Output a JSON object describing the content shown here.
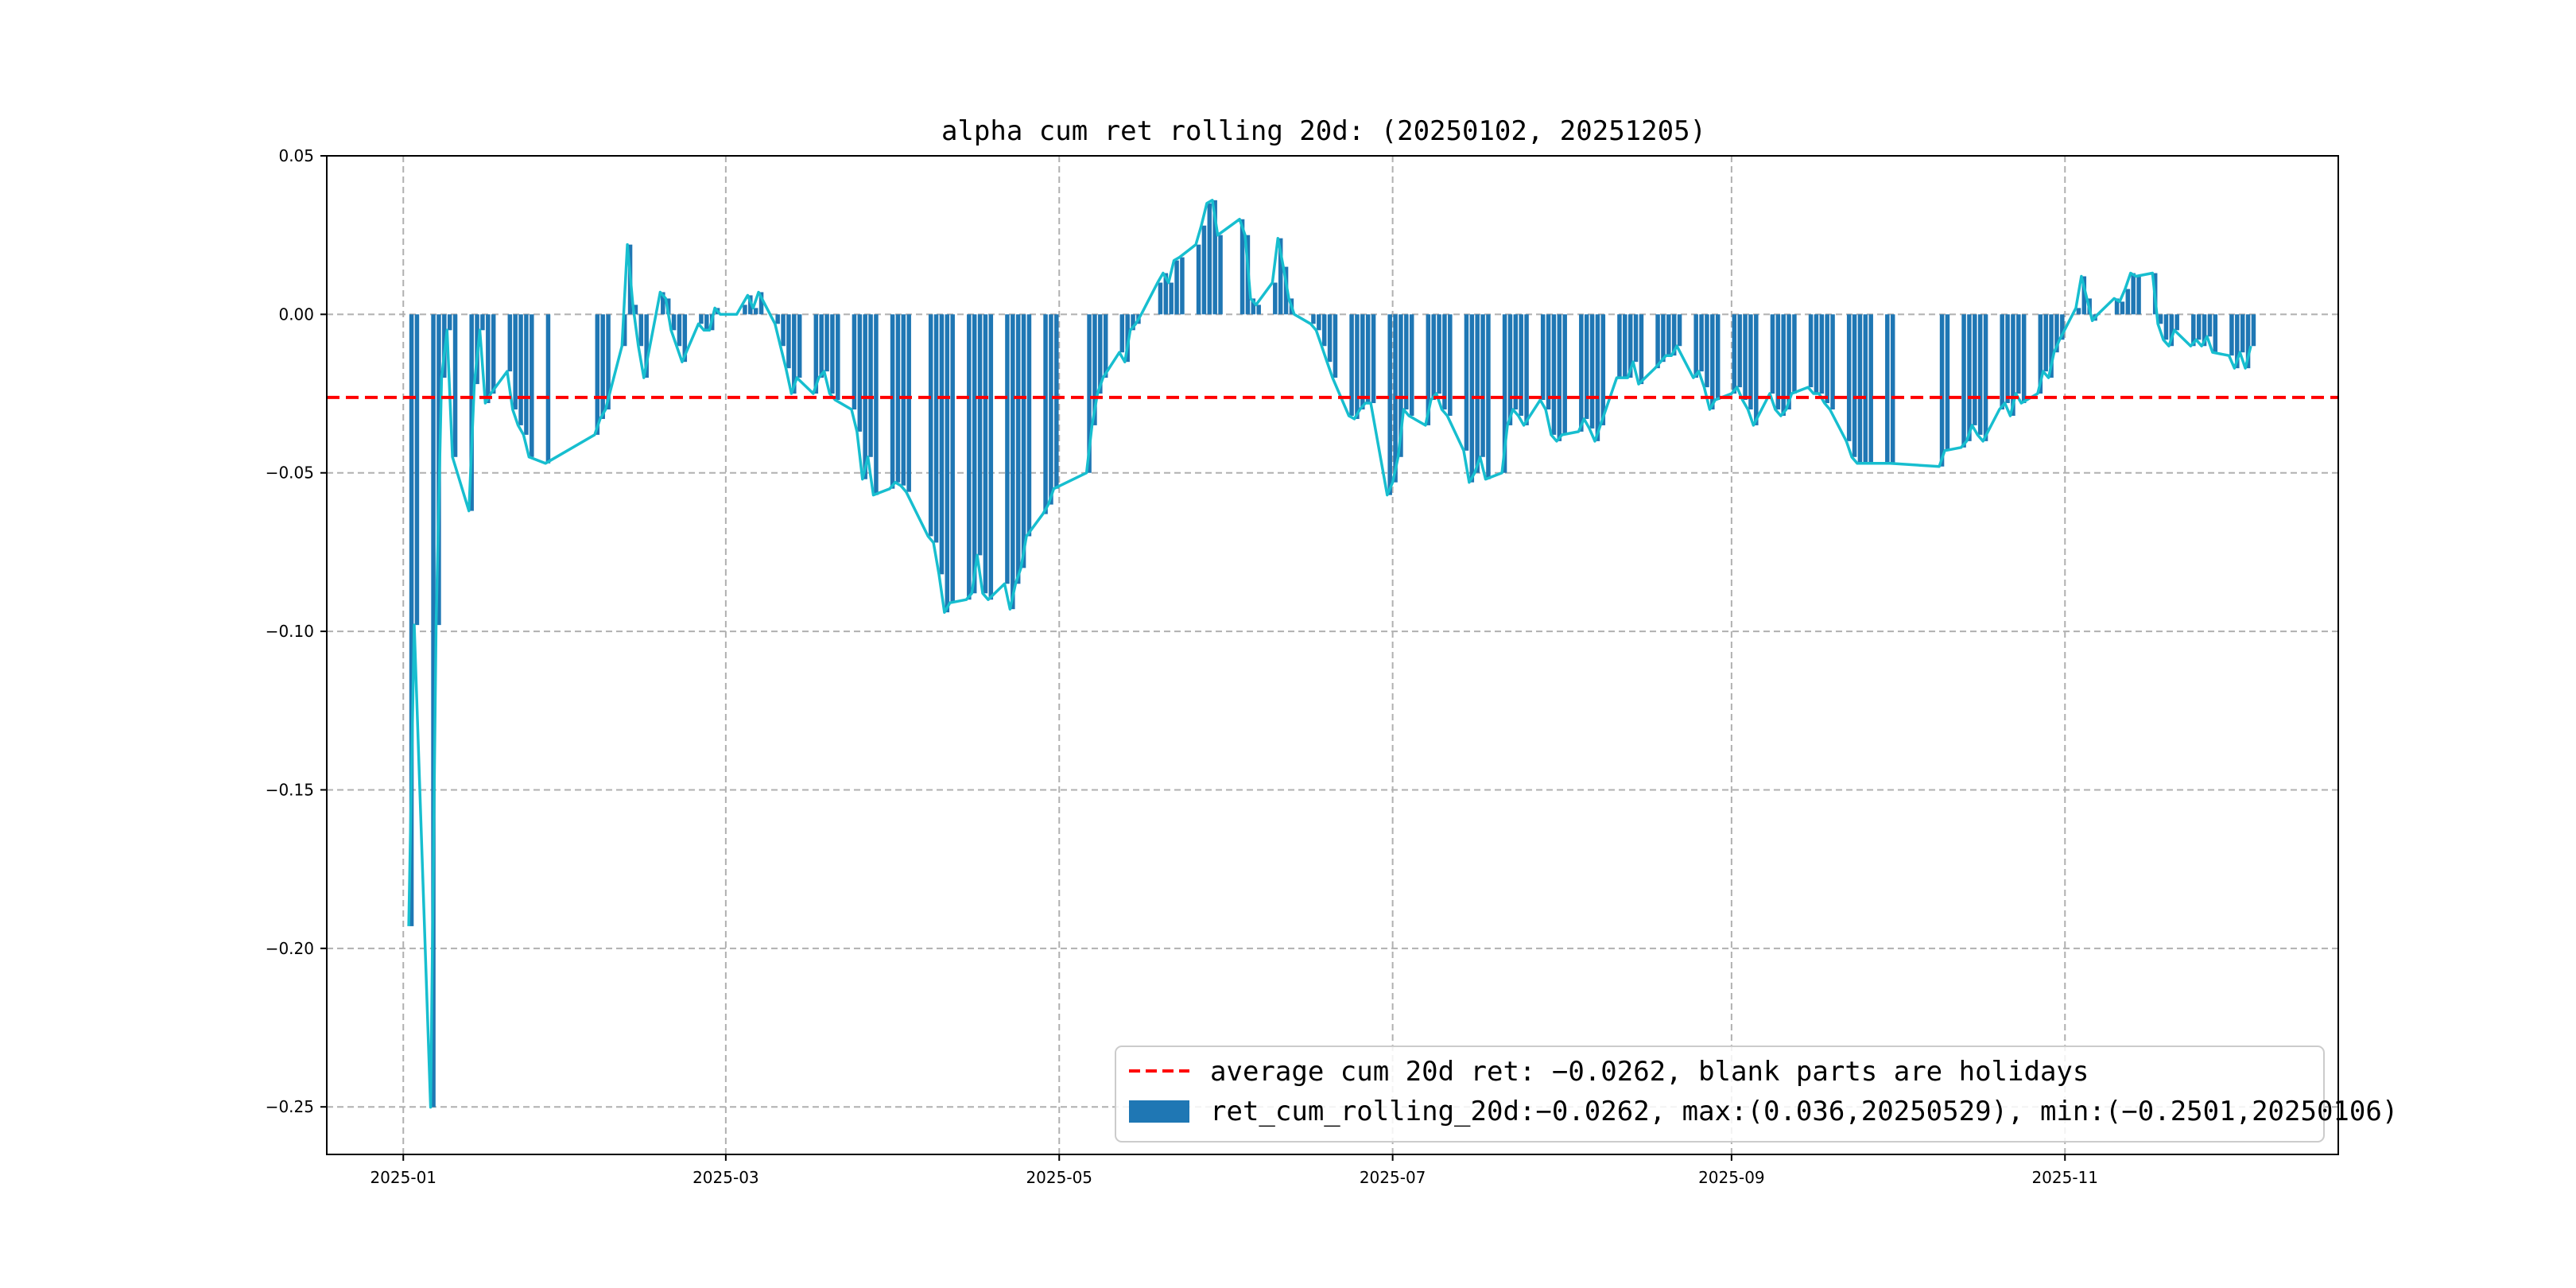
{
  "chart_data": {
    "type": "bar",
    "title": "alpha cum ret rolling 20d: (20250102, 20251205)",
    "xlabel": "",
    "ylabel": "",
    "ylim": [
      -0.265,
      0.05
    ],
    "xlim_dates": [
      "2024-12-18",
      "2025-12-21"
    ],
    "grid": true,
    "yticks": [
      0.05,
      0.0,
      -0.05,
      -0.1,
      -0.15,
      -0.2,
      -0.25
    ],
    "ytick_labels": [
      "0.05",
      "0.00",
      "−0.05",
      "−0.10",
      "−0.15",
      "−0.20",
      "−0.25"
    ],
    "xticks": [
      "2025-01-01",
      "2025-03-01",
      "2025-05-01",
      "2025-07-01",
      "2025-09-01",
      "2025-11-01"
    ],
    "xtick_labels": [
      "2025-01",
      "2025-03",
      "2025-05",
      "2025-07",
      "2025-09",
      "2025-11"
    ],
    "average_line": {
      "value": -0.0262,
      "color": "#ff0000",
      "style": "dashed"
    },
    "bar_color": "#1f77b4",
    "line_color": "#17becf",
    "legend_position": "lower-right",
    "legend": [
      {
        "label": "average cum 20d ret: −0.0262, blank parts are holidays",
        "kind": "dashed-line",
        "color": "#ff0000"
      },
      {
        "label": "ret_cum_rolling_20d:−0.0262, max:(0.036,20250529), min:(−0.2501,20250106)",
        "kind": "patch",
        "color": "#1f77b4"
      }
    ],
    "series": [
      {
        "name": "ret_cum_rolling_20d",
        "points": [
          [
            "2025-01-02",
            -0.193
          ],
          [
            "2025-01-03",
            -0.098
          ],
          [
            "2025-01-06",
            -0.2501
          ],
          [
            "2025-01-07",
            -0.098
          ],
          [
            "2025-01-08",
            -0.02
          ],
          [
            "2025-01-09",
            -0.005
          ],
          [
            "2025-01-10",
            -0.045
          ],
          [
            "2025-01-13",
            -0.062
          ],
          [
            "2025-01-14",
            -0.022
          ],
          [
            "2025-01-15",
            -0.005
          ],
          [
            "2025-01-16",
            -0.028
          ],
          [
            "2025-01-17",
            -0.025
          ],
          [
            "2025-01-20",
            -0.018
          ],
          [
            "2025-01-21",
            -0.03
          ],
          [
            "2025-01-22",
            -0.035
          ],
          [
            "2025-01-23",
            -0.038
          ],
          [
            "2025-01-24",
            -0.045
          ],
          [
            "2025-01-27",
            -0.047
          ],
          [
            "2025-02-05",
            -0.038
          ],
          [
            "2025-02-06",
            -0.033
          ],
          [
            "2025-02-07",
            -0.03
          ],
          [
            "2025-02-10",
            -0.01
          ],
          [
            "2025-02-11",
            0.022
          ],
          [
            "2025-02-12",
            0.003
          ],
          [
            "2025-02-13",
            -0.01
          ],
          [
            "2025-02-14",
            -0.02
          ],
          [
            "2025-02-17",
            0.007
          ],
          [
            "2025-02-18",
            0.005
          ],
          [
            "2025-02-19",
            -0.005
          ],
          [
            "2025-02-20",
            -0.01
          ],
          [
            "2025-02-21",
            -0.015
          ],
          [
            "2025-02-24",
            -0.003
          ],
          [
            "2025-02-25",
            -0.005
          ],
          [
            "2025-02-26",
            -0.005
          ],
          [
            "2025-02-27",
            0.002
          ],
          [
            "2025-02-28",
            0.0
          ],
          [
            "2025-03-03",
            0.0
          ],
          [
            "2025-03-04",
            0.003
          ],
          [
            "2025-03-05",
            0.006
          ],
          [
            "2025-03-06",
            0.002
          ],
          [
            "2025-03-07",
            0.007
          ],
          [
            "2025-03-10",
            -0.003
          ],
          [
            "2025-03-11",
            -0.01
          ],
          [
            "2025-03-12",
            -0.017
          ],
          [
            "2025-03-13",
            -0.025
          ],
          [
            "2025-03-14",
            -0.02
          ],
          [
            "2025-03-17",
            -0.025
          ],
          [
            "2025-03-18",
            -0.02
          ],
          [
            "2025-03-19",
            -0.018
          ],
          [
            "2025-03-20",
            -0.025
          ],
          [
            "2025-03-21",
            -0.027
          ],
          [
            "2025-03-24",
            -0.03
          ],
          [
            "2025-03-25",
            -0.037
          ],
          [
            "2025-03-26",
            -0.052
          ],
          [
            "2025-03-27",
            -0.045
          ],
          [
            "2025-03-28",
            -0.057
          ],
          [
            "2025-03-31",
            -0.055
          ],
          [
            "2025-04-01",
            -0.053
          ],
          [
            "2025-04-02",
            -0.054
          ],
          [
            "2025-04-03",
            -0.056
          ],
          [
            "2025-04-07",
            -0.07
          ],
          [
            "2025-04-08",
            -0.072
          ],
          [
            "2025-04-09",
            -0.082
          ],
          [
            "2025-04-10",
            -0.094
          ],
          [
            "2025-04-11",
            -0.091
          ],
          [
            "2025-04-14",
            -0.09
          ],
          [
            "2025-04-15",
            -0.088
          ],
          [
            "2025-04-16",
            -0.076
          ],
          [
            "2025-04-17",
            -0.088
          ],
          [
            "2025-04-18",
            -0.09
          ],
          [
            "2025-04-21",
            -0.085
          ],
          [
            "2025-04-22",
            -0.093
          ],
          [
            "2025-04-23",
            -0.085
          ],
          [
            "2025-04-24",
            -0.08
          ],
          [
            "2025-04-25",
            -0.07
          ],
          [
            "2025-04-28",
            -0.063
          ],
          [
            "2025-04-29",
            -0.06
          ],
          [
            "2025-04-30",
            -0.055
          ],
          [
            "2025-05-06",
            -0.05
          ],
          [
            "2025-05-07",
            -0.035
          ],
          [
            "2025-05-08",
            -0.025
          ],
          [
            "2025-05-09",
            -0.02
          ],
          [
            "2025-05-12",
            -0.012
          ],
          [
            "2025-05-13",
            -0.015
          ],
          [
            "2025-05-14",
            -0.005
          ],
          [
            "2025-05-15",
            -0.003
          ],
          [
            "2025-05-16",
            0.0
          ],
          [
            "2025-05-19",
            0.01
          ],
          [
            "2025-05-20",
            0.013
          ],
          [
            "2025-05-21",
            0.01
          ],
          [
            "2025-05-22",
            0.017
          ],
          [
            "2025-05-23",
            0.018
          ],
          [
            "2025-05-26",
            0.022
          ],
          [
            "2025-05-27",
            0.028
          ],
          [
            "2025-05-28",
            0.035
          ],
          [
            "2025-05-29",
            0.036
          ],
          [
            "2025-05-30",
            0.025
          ],
          [
            "2025-06-03",
            0.03
          ],
          [
            "2025-06-04",
            0.025
          ],
          [
            "2025-06-05",
            0.005
          ],
          [
            "2025-06-06",
            0.003
          ],
          [
            "2025-06-09",
            0.01
          ],
          [
            "2025-06-10",
            0.024
          ],
          [
            "2025-06-11",
            0.015
          ],
          [
            "2025-06-12",
            0.005
          ],
          [
            "2025-06-13",
            0.0
          ],
          [
            "2025-06-16",
            -0.003
          ],
          [
            "2025-06-17",
            -0.005
          ],
          [
            "2025-06-18",
            -0.01
          ],
          [
            "2025-06-19",
            -0.015
          ],
          [
            "2025-06-20",
            -0.02
          ],
          [
            "2025-06-23",
            -0.032
          ],
          [
            "2025-06-24",
            -0.033
          ],
          [
            "2025-06-25",
            -0.03
          ],
          [
            "2025-06-26",
            -0.028
          ],
          [
            "2025-06-27",
            -0.028
          ],
          [
            "2025-06-30",
            -0.057
          ],
          [
            "2025-07-01",
            -0.053
          ],
          [
            "2025-07-02",
            -0.045
          ],
          [
            "2025-07-03",
            -0.03
          ],
          [
            "2025-07-04",
            -0.032
          ],
          [
            "2025-07-07",
            -0.035
          ],
          [
            "2025-07-08",
            -0.027
          ],
          [
            "2025-07-09",
            -0.025
          ],
          [
            "2025-07-10",
            -0.03
          ],
          [
            "2025-07-11",
            -0.032
          ],
          [
            "2025-07-14",
            -0.043
          ],
          [
            "2025-07-15",
            -0.053
          ],
          [
            "2025-07-16",
            -0.05
          ],
          [
            "2025-07-17",
            -0.045
          ],
          [
            "2025-07-18",
            -0.052
          ],
          [
            "2025-07-21",
            -0.05
          ],
          [
            "2025-07-22",
            -0.035
          ],
          [
            "2025-07-23",
            -0.03
          ],
          [
            "2025-07-24",
            -0.032
          ],
          [
            "2025-07-25",
            -0.035
          ],
          [
            "2025-07-28",
            -0.027
          ],
          [
            "2025-07-29",
            -0.03
          ],
          [
            "2025-07-30",
            -0.038
          ],
          [
            "2025-07-31",
            -0.04
          ],
          [
            "2025-08-01",
            -0.038
          ],
          [
            "2025-08-04",
            -0.037
          ],
          [
            "2025-08-05",
            -0.033
          ],
          [
            "2025-08-06",
            -0.036
          ],
          [
            "2025-08-07",
            -0.04
          ],
          [
            "2025-08-08",
            -0.035
          ],
          [
            "2025-08-11",
            -0.02
          ],
          [
            "2025-08-12",
            -0.02
          ],
          [
            "2025-08-13",
            -0.02
          ],
          [
            "2025-08-14",
            -0.015
          ],
          [
            "2025-08-15",
            -0.022
          ],
          [
            "2025-08-18",
            -0.017
          ],
          [
            "2025-08-19",
            -0.015
          ],
          [
            "2025-08-20",
            -0.013
          ],
          [
            "2025-08-21",
            -0.013
          ],
          [
            "2025-08-22",
            -0.01
          ],
          [
            "2025-08-25",
            -0.02
          ],
          [
            "2025-08-26",
            -0.018
          ],
          [
            "2025-08-27",
            -0.023
          ],
          [
            "2025-08-28",
            -0.03
          ],
          [
            "2025-08-29",
            -0.027
          ],
          [
            "2025-09-01",
            -0.025
          ],
          [
            "2025-09-02",
            -0.023
          ],
          [
            "2025-09-03",
            -0.027
          ],
          [
            "2025-09-04",
            -0.03
          ],
          [
            "2025-09-05",
            -0.035
          ],
          [
            "2025-09-08",
            -0.025
          ],
          [
            "2025-09-09",
            -0.03
          ],
          [
            "2025-09-10",
            -0.032
          ],
          [
            "2025-09-11",
            -0.03
          ],
          [
            "2025-09-12",
            -0.025
          ],
          [
            "2025-09-15",
            -0.023
          ],
          [
            "2025-09-16",
            -0.025
          ],
          [
            "2025-09-17",
            -0.025
          ],
          [
            "2025-09-18",
            -0.028
          ],
          [
            "2025-09-19",
            -0.03
          ],
          [
            "2025-09-22",
            -0.04
          ],
          [
            "2025-09-23",
            -0.045
          ],
          [
            "2025-09-24",
            -0.047
          ],
          [
            "2025-09-25",
            -0.047
          ],
          [
            "2025-09-26",
            -0.047
          ],
          [
            "2025-09-29",
            -0.047
          ],
          [
            "2025-09-30",
            -0.047
          ],
          [
            "2025-10-09",
            -0.048
          ],
          [
            "2025-10-10",
            -0.043
          ],
          [
            "2025-10-13",
            -0.042
          ],
          [
            "2025-10-14",
            -0.04
          ],
          [
            "2025-10-15",
            -0.035
          ],
          [
            "2025-10-16",
            -0.038
          ],
          [
            "2025-10-17",
            -0.04
          ],
          [
            "2025-10-20",
            -0.03
          ],
          [
            "2025-10-21",
            -0.028
          ],
          [
            "2025-10-22",
            -0.032
          ],
          [
            "2025-10-23",
            -0.025
          ],
          [
            "2025-10-24",
            -0.028
          ],
          [
            "2025-10-27",
            -0.025
          ],
          [
            "2025-10-28",
            -0.018
          ],
          [
            "2025-10-29",
            -0.02
          ],
          [
            "2025-10-30",
            -0.012
          ],
          [
            "2025-10-31",
            -0.008
          ],
          [
            "2025-11-03",
            0.002
          ],
          [
            "2025-11-04",
            0.012
          ],
          [
            "2025-11-05",
            0.005
          ],
          [
            "2025-11-06",
            -0.002
          ],
          [
            "2025-11-07",
            0.0
          ],
          [
            "2025-11-10",
            0.005
          ],
          [
            "2025-11-11",
            0.004
          ],
          [
            "2025-11-12",
            0.008
          ],
          [
            "2025-11-13",
            0.013
          ],
          [
            "2025-11-14",
            0.012
          ],
          [
            "2025-11-17",
            0.013
          ],
          [
            "2025-11-18",
            -0.003
          ],
          [
            "2025-11-19",
            -0.008
          ],
          [
            "2025-11-20",
            -0.01
          ],
          [
            "2025-11-21",
            -0.005
          ],
          [
            "2025-11-24",
            -0.01
          ],
          [
            "2025-11-25",
            -0.008
          ],
          [
            "2025-11-26",
            -0.01
          ],
          [
            "2025-11-27",
            -0.007
          ],
          [
            "2025-11-28",
            -0.012
          ],
          [
            "2025-12-01",
            -0.013
          ],
          [
            "2025-12-02",
            -0.017
          ],
          [
            "2025-12-03",
            -0.012
          ],
          [
            "2025-12-04",
            -0.017
          ],
          [
            "2025-12-05",
            -0.01
          ]
        ]
      }
    ]
  }
}
